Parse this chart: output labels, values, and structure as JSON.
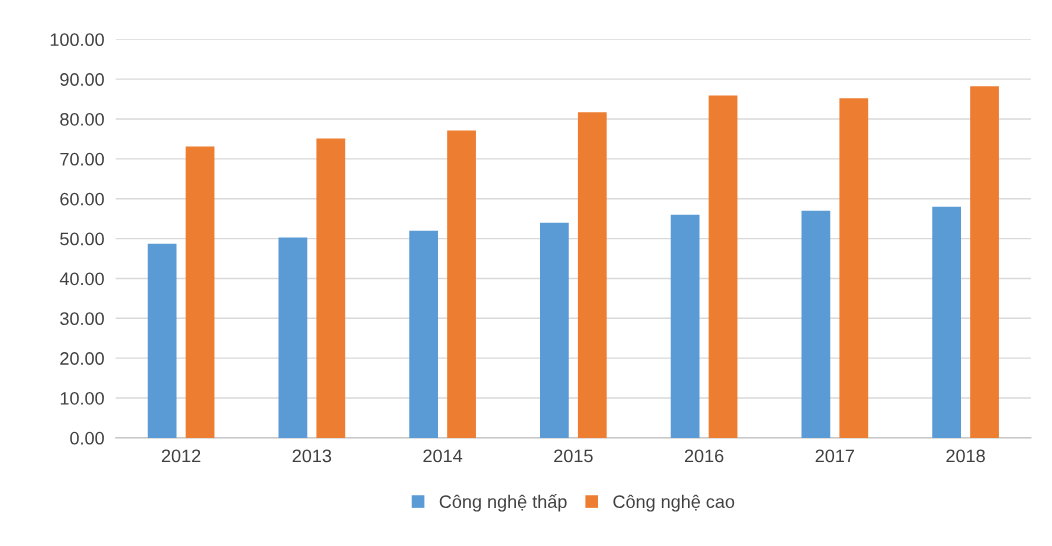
{
  "chart_data": {
    "type": "bar",
    "categories": [
      "2012",
      "2013",
      "2014",
      "2015",
      "2016",
      "2017",
      "2018"
    ],
    "series": [
      {
        "name": "Công nghệ thấp",
        "color": "#5b9bd5",
        "values": [
          48.7,
          50.3,
          52.0,
          54.0,
          56.0,
          57.0,
          58.0
        ]
      },
      {
        "name": "Công nghệ cao",
        "color": "#ed7d31",
        "values": [
          73.1,
          75.1,
          77.1,
          81.7,
          85.9,
          85.2,
          88.2
        ]
      }
    ],
    "ylim": [
      0,
      100
    ],
    "yticks": [
      {
        "value": 0,
        "label": "0.00"
      },
      {
        "value": 10,
        "label": "10.00"
      },
      {
        "value": 20,
        "label": "20.00"
      },
      {
        "value": 30,
        "label": "30.00"
      },
      {
        "value": 40,
        "label": "40.00"
      },
      {
        "value": 50,
        "label": "50.00"
      },
      {
        "value": 60,
        "label": "60.00"
      },
      {
        "value": 70,
        "label": "70.00"
      },
      {
        "value": 80,
        "label": "80.00"
      },
      {
        "value": 90,
        "label": "90.00"
      },
      {
        "value": 100,
        "label": "100.00"
      }
    ],
    "grid": "y",
    "legend": "bottom"
  }
}
